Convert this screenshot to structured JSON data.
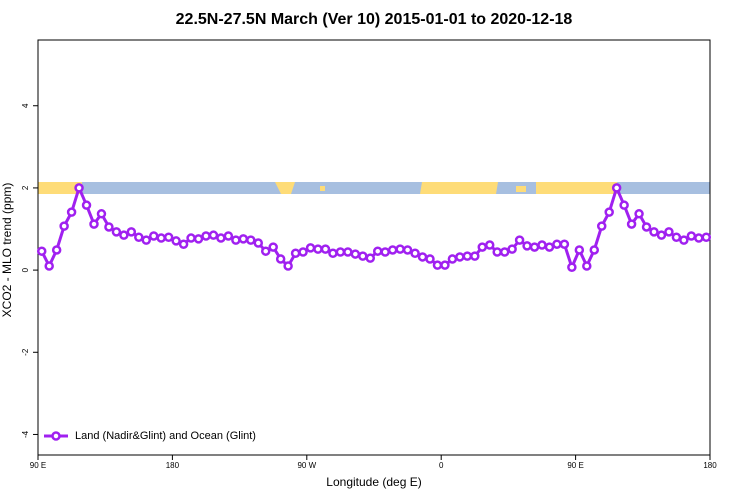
{
  "chart_data": {
    "type": "line",
    "title": "22.5N-27.5N March (Ver 10)   2015-01-01 to 2020-12-18",
    "xlabel": "Longitude (deg E)",
    "ylabel": "XCO2 - MLO trend (ppm)",
    "xlim": [
      90,
      540
    ],
    "ylim": [
      -4.5,
      5.6
    ],
    "xticks": [
      {
        "value": 90,
        "label": "90 E"
      },
      180,
      {
        "value": 270,
        "label": "90 W"
      },
      {
        "value": 360,
        "label": "0"
      },
      {
        "value": 450,
        "label": "90 E"
      },
      {
        "value": 540,
        "label": "180"
      }
    ],
    "yticks": [
      -4,
      -2,
      0,
      2,
      4
    ],
    "legend": "bottom-left",
    "x": [
      92.5,
      97.5,
      102.5,
      107.5,
      112.5,
      117.5,
      122.5,
      127.5,
      132.5,
      137.5,
      142.5,
      147.5,
      152.5,
      157.5,
      162.5,
      167.5,
      172.5,
      177.5,
      182.5,
      187.5,
      192.5,
      197.5,
      202.5,
      207.5,
      212.5,
      217.5,
      222.5,
      227.5,
      232.5,
      237.5,
      242.5,
      247.5,
      252.5,
      257.5,
      262.5,
      267.5,
      272.5,
      277.5,
      282.5,
      287.5,
      292.5,
      297.5,
      302.5,
      307.5,
      312.5,
      317.5,
      322.5,
      327.5,
      332.5,
      337.5,
      342.5,
      347.5,
      352.5,
      357.5,
      362.5,
      367.5,
      372.5,
      377.5,
      382.5,
      387.5,
      392.5,
      397.5,
      402.5,
      407.5,
      412.5,
      417.5,
      422.5,
      427.5,
      432.5,
      437.5,
      442.5,
      447.5,
      452.5,
      457.5,
      462.5,
      467.5,
      472.5,
      477.5,
      482.5,
      487.5,
      492.5,
      497.5,
      502.5,
      507.5,
      512.5,
      517.5,
      522.5,
      527.5,
      532.5,
      537.5
    ],
    "series": [
      {
        "name": "Land (Nadir&Glint) and Ocean (Glint)",
        "color": "#a020f0",
        "values": [
          0.46,
          0.1,
          0.49,
          1.07,
          1.41,
          2.0,
          1.58,
          1.12,
          1.37,
          1.05,
          0.93,
          0.85,
          0.93,
          0.8,
          0.73,
          0.83,
          0.78,
          0.8,
          0.71,
          0.63,
          0.78,
          0.76,
          0.83,
          0.85,
          0.78,
          0.83,
          0.73,
          0.76,
          0.73,
          0.66,
          0.46,
          0.56,
          0.27,
          0.1,
          0.41,
          0.44,
          0.54,
          0.51,
          0.51,
          0.41,
          0.44,
          0.44,
          0.39,
          0.34,
          0.29,
          0.46,
          0.44,
          0.49,
          0.51,
          0.49,
          0.41,
          0.32,
          0.27,
          0.12,
          0.12,
          0.27,
          0.32,
          0.34,
          0.34,
          0.56,
          0.61,
          0.44,
          0.44,
          0.51,
          0.73,
          0.59,
          0.56,
          0.61,
          0.56,
          0.63,
          0.63,
          0.07,
          0.49,
          0.1,
          0.49,
          1.07,
          1.41,
          2.0,
          1.58,
          1.12,
          1.37,
          1.05,
          0.93,
          0.85,
          0.93,
          0.8,
          0.73,
          0.83,
          0.78,
          0.8
        ]
      }
    ]
  }
}
